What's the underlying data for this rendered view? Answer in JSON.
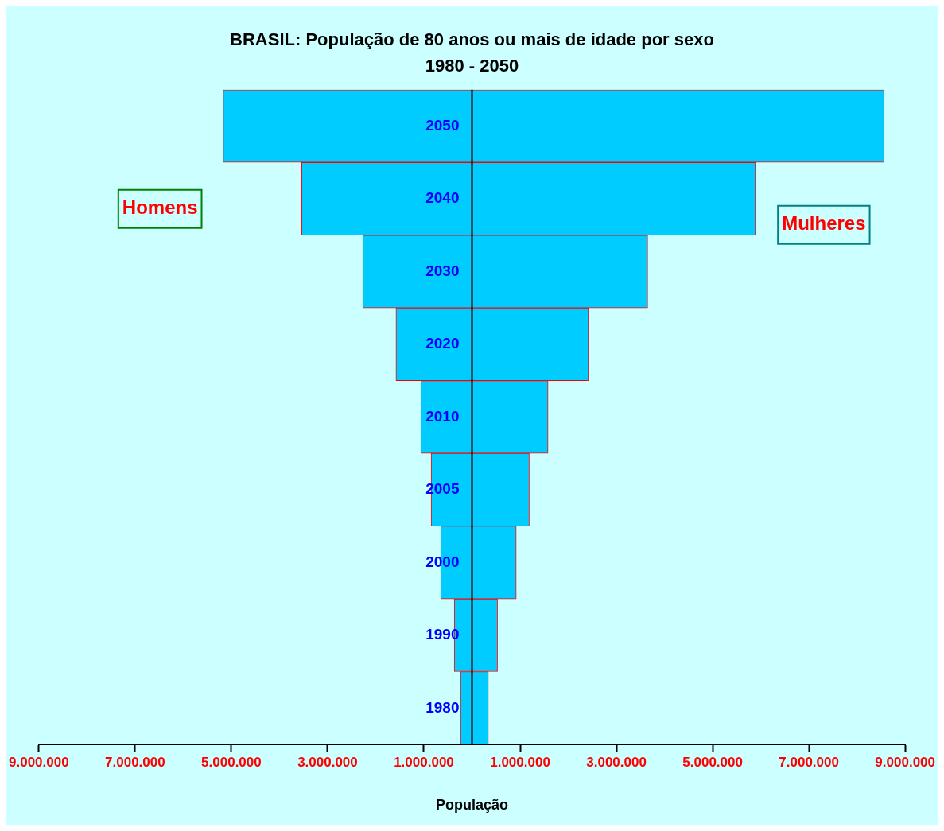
{
  "chart_data": {
    "type": "bar",
    "title": "BRASIL: População de 80 anos ou mais de idade por sexo",
    "subtitle": "1980 - 2050",
    "xlabel": "População",
    "orientation": "horizontal",
    "stacked": true,
    "categories": [
      "2050",
      "2040",
      "2030",
      "2020",
      "2010",
      "2005",
      "2000",
      "1990",
      "1980"
    ],
    "series": [
      {
        "name": "Homens",
        "color": "#00ccff",
        "values": [
          -5170000,
          -3540000,
          -2270000,
          -1580000,
          -1060000,
          -850000,
          -650000,
          -370000,
          -240000
        ]
      },
      {
        "name": "Mulheres",
        "color": "#00ccff",
        "values": [
          8560000,
          5890000,
          3650000,
          2420000,
          1580000,
          1190000,
          920000,
          530000,
          340000
        ]
      }
    ],
    "xlim": [
      -9000000,
      9000000
    ],
    "xticks": [
      {
        "value": -9000000,
        "label": "9.000.000"
      },
      {
        "value": -7000000,
        "label": "7.000.000"
      },
      {
        "value": -5000000,
        "label": "5.000.000"
      },
      {
        "value": -3000000,
        "label": "3.000.000"
      },
      {
        "value": -1000000,
        "label": "1.000.000"
      },
      {
        "value": 1000000,
        "label": "1.000.000"
      },
      {
        "value": 3000000,
        "label": "3.000.000"
      },
      {
        "value": 5000000,
        "label": "5.000.000"
      },
      {
        "value": 7000000,
        "label": "7.000.000"
      },
      {
        "value": 9000000,
        "label": "9.000.000"
      }
    ],
    "grid": false,
    "legend": false
  }
}
